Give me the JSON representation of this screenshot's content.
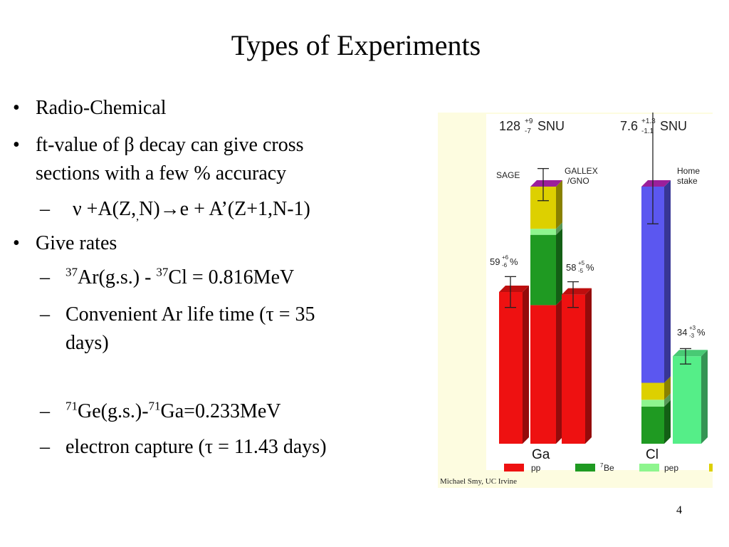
{
  "slide": {
    "title": "Types of Experiments",
    "page_number": "4"
  },
  "bullets": {
    "b1": "Radio-Chemical",
    "b2_line1": "ft-value of β decay can give cross",
    "b2_line2": "sections with a few % accuracy",
    "reaction_pre": "ν +A(Z,",
    "reaction_sub": ",",
    "reaction_post": "N)→e + A’(Z+1,N-1)",
    "b3": "Give rates",
    "ar_mass": "37",
    "ar_mid": "Ar(g.s.) - ",
    "cl_mass": "37",
    "cl_rest": "Cl = 0.816MeV",
    "lifetime_line1": "Convenient Ar life time (τ = 35",
    "lifetime_line2": "days)",
    "ge_mass": "71",
    "ge_mid": "Ge(g.s.)-",
    "ga_mass": "71",
    "ga_rest": "Ga=0.233MeV",
    "capture": "electron capture (τ = 11.43 days)",
    "dot": "•",
    "dash": "–"
  },
  "chart_data": {
    "type": "bar",
    "stacked": true,
    "experiments": [
      {
        "target": "Ga",
        "prediction_value": "128",
        "prediction_plus": "+9",
        "prediction_minus": "-7",
        "prediction_unit": "SNU",
        "prediction_snu": 128,
        "segments_snu": {
          "pp": 69,
          "7Be": 35,
          "pep": 3,
          "other": 21
        },
        "measurements": [
          {
            "label": "SAGE",
            "percent_label": "59",
            "plus": "+6",
            "minus": "-6",
            "percent_sign": "%",
            "percent": 59
          },
          {
            "label_line1": "GALLEX",
            "label_line2": "/GNO",
            "percent_label": "58",
            "plus": "+5",
            "minus": "-5",
            "percent_sign": "%",
            "percent": 58
          }
        ]
      },
      {
        "target": "Cl",
        "prediction_value": "7.6",
        "prediction_plus": "+1.3",
        "prediction_minus": "-1.1",
        "prediction_unit": "SNU",
        "prediction_snu": 7.6,
        "segments_snu": {
          "7Be": 1.1,
          "pep": 0.2,
          "other": 0.5,
          "8B": 5.8
        },
        "measurements": [
          {
            "label_line1": "Home",
            "label_line2": "stake",
            "percent_label": "34",
            "plus": "+3",
            "minus": "-3",
            "percent_sign": "%",
            "percent": 34
          }
        ]
      }
    ],
    "legend": [
      {
        "name": "pp",
        "color": "#ee1111"
      },
      {
        "name_sup": "7",
        "name": "Be",
        "color": "#1f9a22"
      },
      {
        "name": "pep",
        "color": "#8ef58e"
      }
    ],
    "colors": {
      "pp": "#ee1111",
      "be7": "#1f9a22",
      "pep": "#8ef58e",
      "other": "#ddd000",
      "b8": "#5b57f0",
      "top": "#9b1f9b",
      "measured": "#ee1111",
      "measured_cl": "#55ee88"
    },
    "credit": "Michael Smy, UC Irvine"
  }
}
